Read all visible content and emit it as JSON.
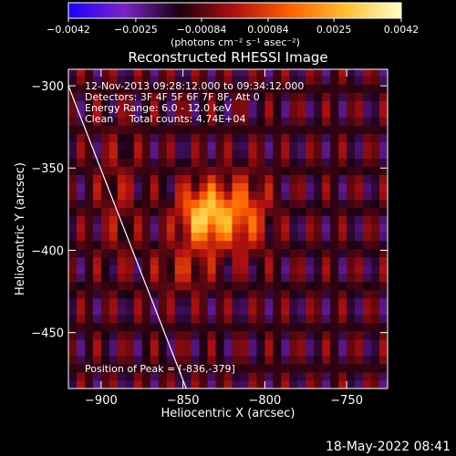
{
  "chart_data": {
    "type": "heatmap",
    "title": "Reconstructed RHESSI Image",
    "xlabel": "Heliocentric X (arcsec)",
    "ylabel": "Heliocentric Y (arcsec)",
    "xlim": [
      -920,
      -725
    ],
    "ylim": [
      -484,
      -290
    ],
    "x_ticks": [
      -900,
      -850,
      -800,
      -750
    ],
    "y_ticks": [
      -300,
      -350,
      -400,
      -450
    ],
    "x_tick_labels": [
      "−900",
      "−850",
      "−800",
      "−750"
    ],
    "y_tick_labels": [
      "−300",
      "−350",
      "−400",
      "−450"
    ],
    "colorbar": {
      "range": [
        -0.0042,
        0.0042
      ],
      "ticks": [
        -0.0042,
        -0.0025,
        -0.00084,
        0.00084,
        0.0025,
        0.0042
      ],
      "tick_labels": [
        "−0.0042",
        "−0.0025",
        "−0.00084",
        "0.00084",
        "0.0025",
        "0.0042"
      ],
      "unit_label": "(photons cm⁻² s⁻¹ asec⁻²)",
      "colormap": [
        "#1a00ff",
        "#7a24c8",
        "#1a0010",
        "#b01010",
        "#ff6000",
        "#ffc030",
        "#ffffc8"
      ]
    },
    "annotations": [
      "12-Nov-2013 09:28:12.000 to 09:34:12.000",
      "Detectors: 3F 4F 5F 6F 7F 8F, Att 0",
      "Energy Range: 6.0 - 12.0 keV",
      "Clean     Total counts: 4.74E+04"
    ],
    "peak_label": "Position of Peak = [-836,-379]",
    "peak": [
      -836,
      -379
    ],
    "limb_line": [
      [
        -920,
        -300
      ],
      [
        -848,
        -484
      ]
    ],
    "sources": [
      {
        "x": -836,
        "y": -379,
        "amp": 0.0042,
        "sx": 11,
        "sy": 13
      },
      {
        "x": -812,
        "y": -378,
        "amp": 0.0022,
        "sx": 10,
        "sy": 16
      },
      {
        "x": -850,
        "y": -412,
        "amp": 0.0011,
        "sx": 12,
        "sy": 10
      },
      {
        "x": -890,
        "y": -368,
        "amp": 0.0008,
        "sx": 9,
        "sy": 30
      }
    ]
  },
  "footer": {
    "timestamp": "18-May-2022 08:41"
  }
}
